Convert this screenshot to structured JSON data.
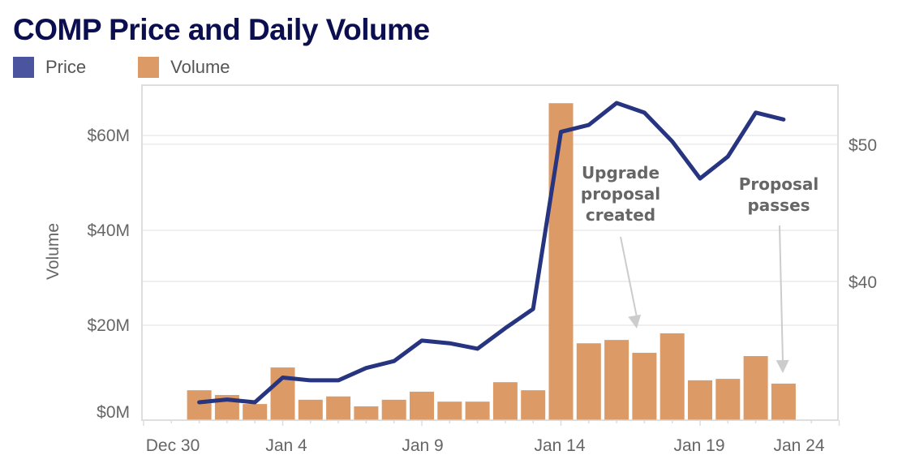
{
  "chart_data": {
    "type": "bar+line",
    "title": "COMP Price and Daily Volume",
    "legend": [
      {
        "name": "Price",
        "color": "#4a549f"
      },
      {
        "name": "Volume",
        "color": "#dc9a66"
      }
    ],
    "legend_placement": "top-left",
    "x": [
      "Jan 1",
      "Jan 2",
      "Jan 3",
      "Jan 4",
      "Jan 5",
      "Jan 6",
      "Jan 7",
      "Jan 8",
      "Jan 9",
      "Jan 10",
      "Jan 11",
      "Jan 12",
      "Jan 13",
      "Jan 14",
      "Jan 15",
      "Jan 16",
      "Jan 17",
      "Jan 18",
      "Jan 19",
      "Jan 20",
      "Jan 21",
      "Jan 22"
    ],
    "x_ticks": [
      "Dec 30",
      "Jan 4",
      "Jan 9",
      "Jan 14",
      "Jan 19",
      "Jan 24"
    ],
    "ylabel_left": "Volume",
    "y_left_ticks": [
      "$0M",
      "$20M",
      "$40M",
      "$60M"
    ],
    "y_right_ticks": [
      "$40",
      "$50"
    ],
    "y_left_range": [
      0,
      70.6
    ],
    "y_right_range": [
      29.9,
      54.3
    ],
    "grid": true,
    "series": [
      {
        "name": "Volume",
        "type": "bar",
        "axis": "left",
        "unit": "$M",
        "color": "#dc9a66",
        "values": [
          6.3,
          5.3,
          3.4,
          11.1,
          4.3,
          5.0,
          2.9,
          4.3,
          6.0,
          3.9,
          3.9,
          8.0,
          6.3,
          66.8,
          16.2,
          16.9,
          14.2,
          18.3,
          8.4,
          8.7,
          13.5,
          7.7
        ]
      },
      {
        "name": "Price",
        "type": "line",
        "axis": "right",
        "unit": "$",
        "color": "#27347f",
        "values": [
          31.2,
          31.4,
          31.2,
          33.0,
          32.8,
          32.8,
          33.7,
          34.2,
          35.7,
          35.5,
          35.1,
          36.6,
          38.0,
          50.9,
          51.4,
          53.0,
          52.3,
          50.2,
          47.5,
          49.1,
          52.3,
          51.8
        ]
      }
    ],
    "annotations": [
      {
        "lines": [
          "Upgrade",
          "proposal",
          "created"
        ],
        "target": "Jan 17"
      },
      {
        "lines": [
          "Proposal",
          "passes"
        ],
        "target": "Jan 22"
      }
    ]
  }
}
